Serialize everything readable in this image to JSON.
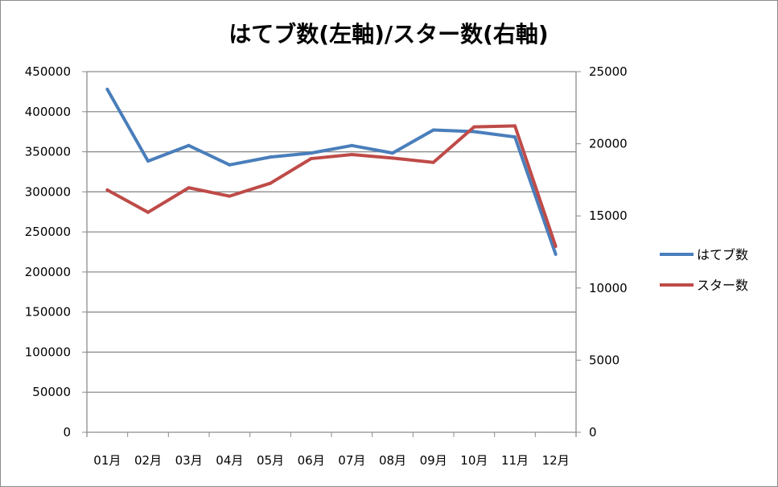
{
  "chart_data": {
    "type": "line",
    "title": "はてブ数(左軸)/スター数(右軸)",
    "categories": [
      "01月",
      "02月",
      "03月",
      "04月",
      "05月",
      "06月",
      "07月",
      "08月",
      "09月",
      "10月",
      "11月",
      "12月"
    ],
    "series": [
      {
        "name": "はてブ数",
        "axis": "left",
        "color": "#4a7ebb",
        "values": [
          428000,
          338400,
          357800,
          333700,
          343400,
          348400,
          357800,
          348400,
          377200,
          375200,
          368500,
          222100
        ]
      },
      {
        "name": "スター数",
        "axis": "right",
        "color": "#be4b48",
        "values": [
          16800,
          15250,
          16950,
          16370,
          17260,
          18970,
          19250,
          19010,
          18710,
          21170,
          21240,
          12890
        ]
      }
    ],
    "y_left": {
      "range": [
        0,
        450000
      ],
      "step": 50000,
      "ticks": [
        "0",
        "50000",
        "100000",
        "150000",
        "200000",
        "250000",
        "300000",
        "350000",
        "400000",
        "450000"
      ]
    },
    "y_right": {
      "range": [
        0,
        25000
      ],
      "step": 5000,
      "ticks": [
        "0",
        "5000",
        "10000",
        "15000",
        "20000",
        "25000"
      ]
    },
    "grid": true,
    "legend_position": "right",
    "xlabel": "",
    "ylabel": ""
  }
}
